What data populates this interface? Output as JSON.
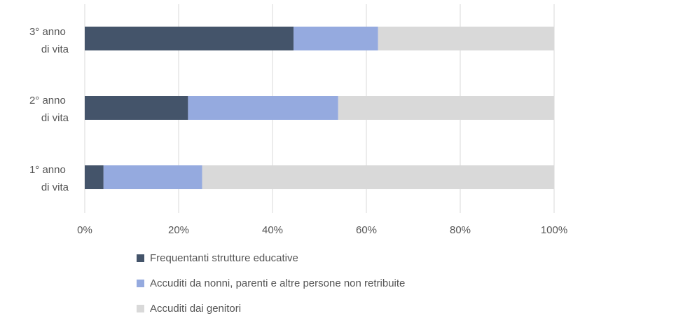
{
  "chart_data": {
    "type": "bar",
    "orientation": "horizontal",
    "stacked": "percent",
    "categories": [
      [
        "3° anno",
        "di vita"
      ],
      [
        "2° anno",
        "di vita"
      ],
      [
        "1° anno",
        "di vita"
      ]
    ],
    "series": [
      {
        "name": "Frequentanti strutture educative",
        "color": "#44546a",
        "values": [
          44.5,
          22,
          4
        ]
      },
      {
        "name": "Accuditi da nonni, parenti e altre persone non retribuite",
        "color": "#95aadf",
        "values": [
          18,
          32,
          21
        ]
      },
      {
        "name": "Accuditi dai genitori",
        "color": "#d9d9d9",
        "values": [
          37.5,
          46,
          75
        ]
      }
    ],
    "x_ticks": [
      "0%",
      "20%",
      "40%",
      "60%",
      "80%",
      "100%"
    ],
    "xlim": [
      0,
      100
    ],
    "grid": "vertical",
    "legend_position": "bottom"
  }
}
